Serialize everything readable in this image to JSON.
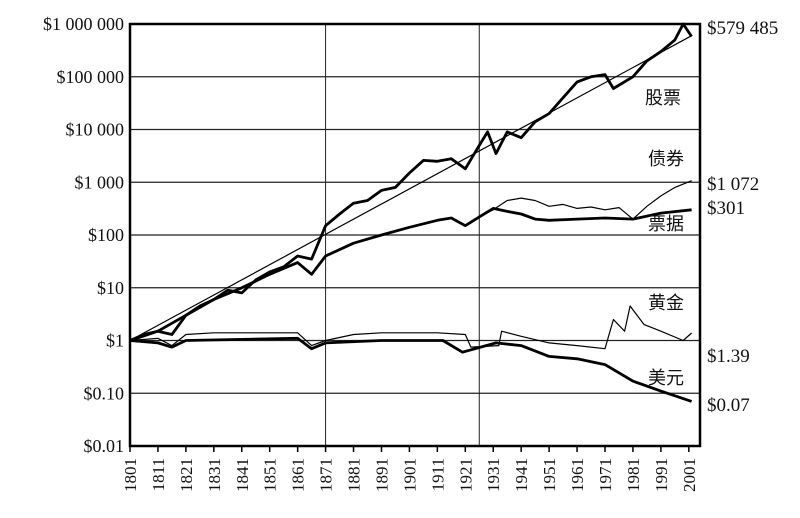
{
  "chart_data": {
    "type": "line",
    "title": "",
    "xlabel": "",
    "ylabel": "",
    "yscale": "log",
    "ylim": [
      0.01,
      1000000
    ],
    "xlim": [
      1801,
      2005
    ],
    "grid": true,
    "y_ticks": [
      {
        "value": 1000000,
        "label": "$1 000 000"
      },
      {
        "value": 100000,
        "label": "$100 000"
      },
      {
        "value": 10000,
        "label": "$10 000"
      },
      {
        "value": 1000,
        "label": "$1 000"
      },
      {
        "value": 100,
        "label": "$100"
      },
      {
        "value": 10,
        "label": "$10"
      },
      {
        "value": 1,
        "label": "$1"
      },
      {
        "value": 0.1,
        "label": "$0.10"
      },
      {
        "value": 0.01,
        "label": "$0.01"
      }
    ],
    "x_ticks": [
      "1801",
      "1811",
      "1821",
      "1831",
      "1841",
      "1851",
      "1861",
      "1871",
      "1881",
      "1891",
      "1901",
      "1911",
      "1921",
      "1931",
      "1941",
      "1951",
      "1961",
      "1971",
      "1981",
      "1991",
      "2001"
    ],
    "x_gridlines": [
      1871,
      1926
    ],
    "series": [
      {
        "name": "股票",
        "end_label": "$579 485",
        "weight": "thick",
        "x": [
          1801,
          1806,
          1811,
          1816,
          1821,
          1826,
          1831,
          1836,
          1841,
          1846,
          1851,
          1856,
          1861,
          1866,
          1871,
          1876,
          1881,
          1886,
          1891,
          1896,
          1901,
          1906,
          1911,
          1916,
          1921,
          1926,
          1929,
          1932,
          1936,
          1941,
          1946,
          1951,
          1956,
          1961,
          1966,
          1971,
          1974,
          1981,
          1986,
          1991,
          1996,
          1999,
          2002
        ],
        "y": [
          1,
          1.3,
          1.5,
          1.3,
          3,
          4.5,
          6,
          9,
          8,
          14,
          20,
          25,
          40,
          35,
          150,
          250,
          400,
          450,
          700,
          800,
          1500,
          2600,
          2500,
          2800,
          1800,
          5000,
          9000,
          3500,
          9000,
          7000,
          14000,
          20000,
          40000,
          80000,
          100000,
          110000,
          60000,
          100000,
          200000,
          300000,
          500000,
          1000000,
          579485
        ]
      },
      {
        "name": "",
        "role": "trend",
        "weight": "thin",
        "x": [
          1801,
          2002
        ],
        "y": [
          1,
          600000
        ]
      },
      {
        "name": "债券",
        "end_label": "$1 072",
        "weight": "thin",
        "x": [
          1801,
          1811,
          1821,
          1831,
          1841,
          1851,
          1861,
          1866,
          1871,
          1881,
          1891,
          1901,
          1911,
          1916,
          1921,
          1926,
          1931,
          1936,
          1941,
          1946,
          1951,
          1956,
          1961,
          1966,
          1971,
          1976,
          1981,
          1986,
          1991,
          1996,
          2002
        ],
        "y": [
          1,
          1.5,
          3,
          6,
          10,
          18,
          30,
          18,
          40,
          70,
          100,
          140,
          190,
          210,
          150,
          220,
          300,
          450,
          500,
          450,
          350,
          380,
          320,
          340,
          300,
          330,
          200,
          350,
          550,
          800,
          1072
        ]
      },
      {
        "name": "票据",
        "end_label": "$301",
        "weight": "thick",
        "x": [
          1801,
          1811,
          1821,
          1831,
          1841,
          1851,
          1861,
          1866,
          1871,
          1881,
          1891,
          1901,
          1911,
          1916,
          1921,
          1926,
          1931,
          1936,
          1941,
          1946,
          1951,
          1961,
          1971,
          1981,
          1991,
          2002
        ],
        "y": [
          1,
          1.5,
          3,
          6,
          10,
          18,
          30,
          18,
          40,
          70,
          100,
          140,
          190,
          210,
          150,
          220,
          320,
          280,
          250,
          200,
          190,
          200,
          210,
          200,
          260,
          301
        ]
      },
      {
        "name": "黄金",
        "end_label": "$1.39",
        "weight": "thin",
        "x": [
          1801,
          1811,
          1816,
          1821,
          1831,
          1841,
          1851,
          1861,
          1866,
          1871,
          1881,
          1891,
          1901,
          1911,
          1921,
          1923,
          1933,
          1934,
          1941,
          1951,
          1961,
          1971,
          1974,
          1978,
          1980,
          1985,
          1991,
          1999,
          2002
        ],
        "y": [
          1,
          1.1,
          0.8,
          1.3,
          1.4,
          1.4,
          1.4,
          1.4,
          0.8,
          1.0,
          1.3,
          1.4,
          1.4,
          1.4,
          1.3,
          0.75,
          0.8,
          1.5,
          1.2,
          0.9,
          0.8,
          0.7,
          2.5,
          1.5,
          4.5,
          2,
          1.5,
          1.0,
          1.39
        ]
      },
      {
        "name": "美元",
        "end_label": "$0.07",
        "weight": "thick",
        "x": [
          1801,
          1811,
          1816,
          1821,
          1841,
          1861,
          1866,
          1871,
          1891,
          1913,
          1920,
          1932,
          1941,
          1951,
          1961,
          1971,
          1981,
          1991,
          2002
        ],
        "y": [
          1,
          0.9,
          0.75,
          1.0,
          1.05,
          1.1,
          0.7,
          0.9,
          1.0,
          1.0,
          0.6,
          0.9,
          0.8,
          0.5,
          0.45,
          0.35,
          0.17,
          0.11,
          0.07
        ]
      }
    ]
  }
}
